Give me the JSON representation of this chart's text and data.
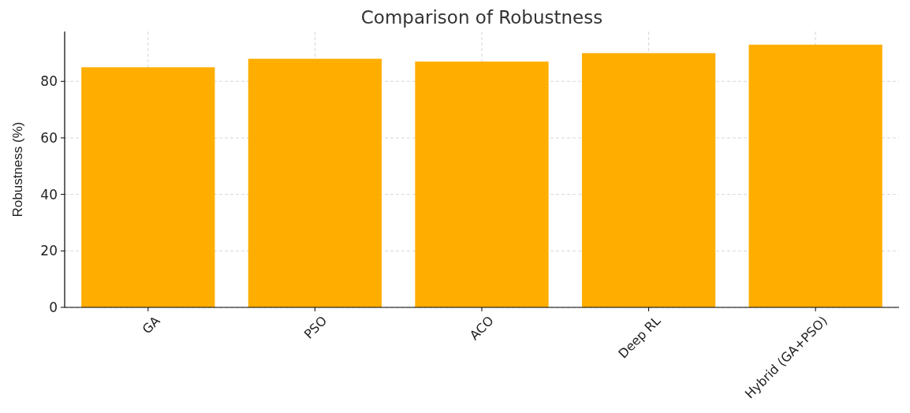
{
  "chart_data": {
    "type": "bar",
    "title": "Comparison of Robustness",
    "ylabel": "Robustness (%)",
    "categories": [
      "GA",
      "PSO",
      "ACO",
      "Deep RL",
      "Hybrid (GA+PSO)"
    ],
    "values": [
      85,
      88,
      87,
      90,
      93
    ],
    "color": "#ffae00",
    "ylim": [
      0,
      97.65
    ],
    "yticks": [
      0,
      20,
      40,
      60,
      80
    ],
    "grid": true
  }
}
